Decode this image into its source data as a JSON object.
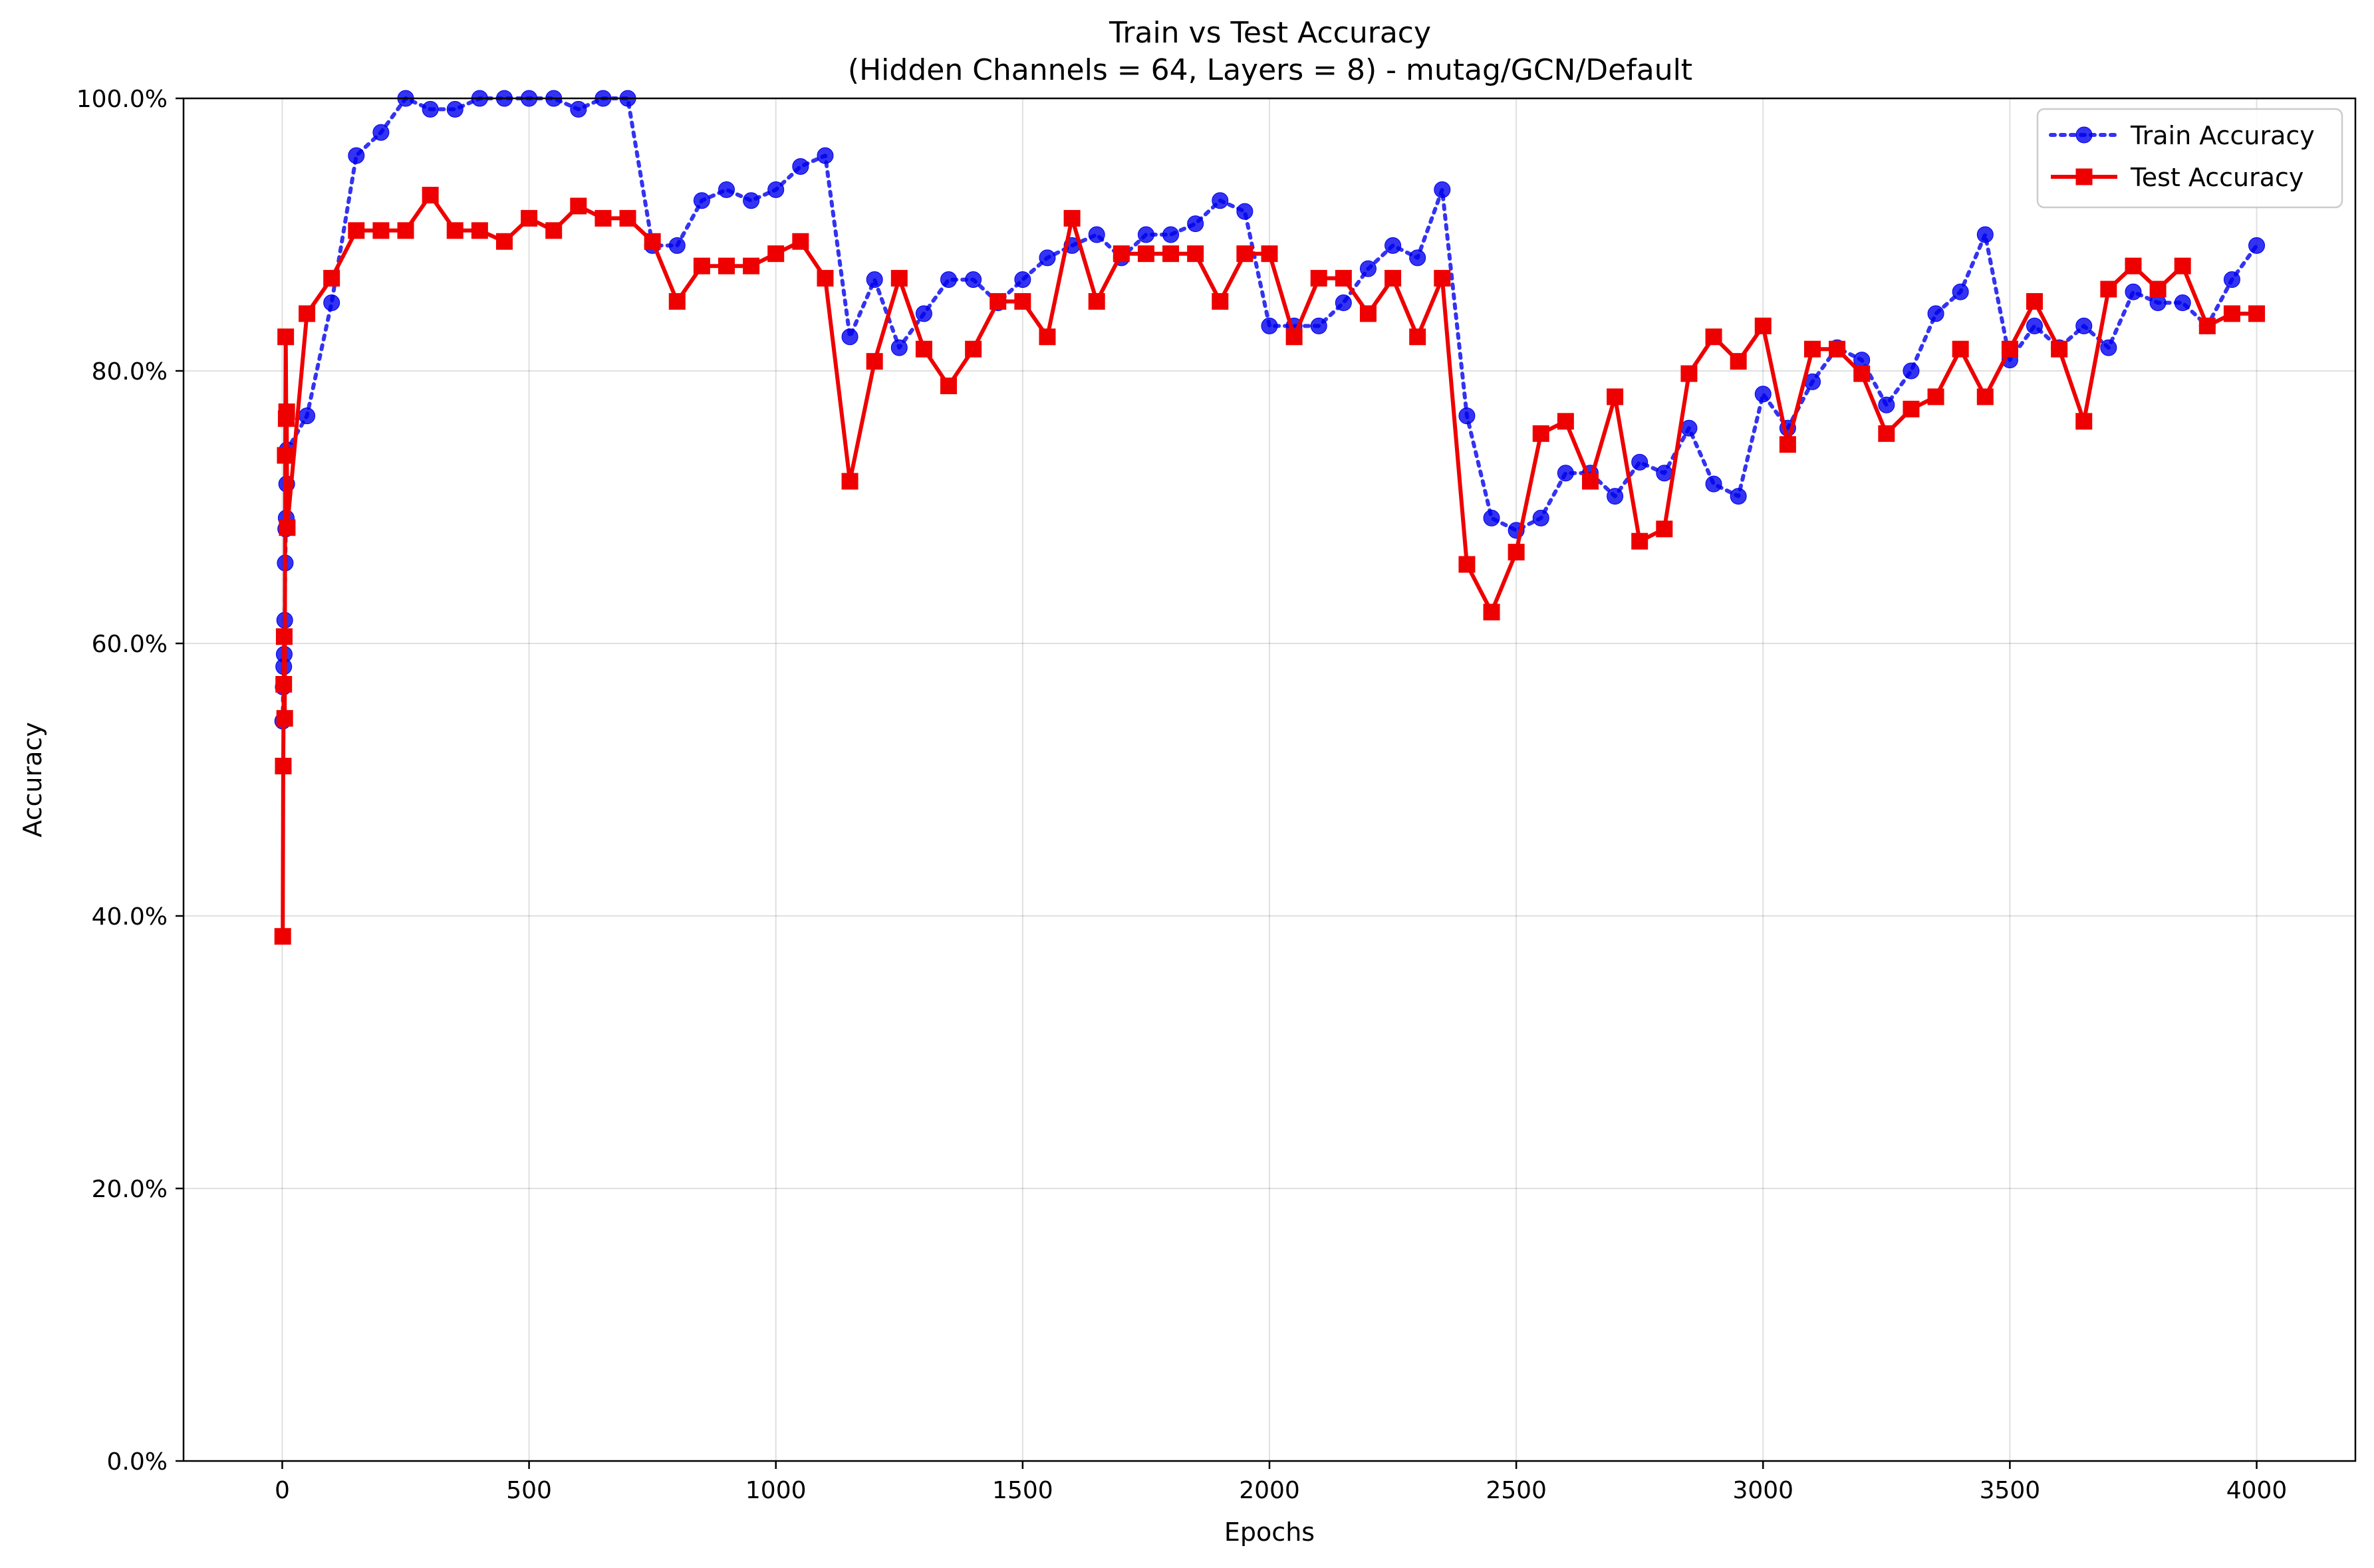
{
  "chart_data": {
    "type": "line",
    "title": "Train vs Test Accuracy",
    "subtitle": "(Hidden Channels = 64, Layers = 8) - mutag/GCN/Default",
    "xlabel": "Epochs",
    "ylabel": "Accuracy",
    "xlim": [
      -200,
      4200
    ],
    "ylim": [
      0,
      100
    ],
    "xticks": [
      0,
      500,
      1000,
      1500,
      2000,
      2500,
      3000,
      3500,
      4000
    ],
    "xtick_labels": [
      "0",
      "500",
      "1000",
      "1500",
      "2000",
      "2500",
      "3000",
      "3500",
      "4000"
    ],
    "yticks": [
      0,
      20,
      40,
      60,
      80,
      100
    ],
    "ytick_labels": [
      "0.0%",
      "20.0%",
      "40.0%",
      "60.0%",
      "80.0%",
      "100.0%"
    ],
    "grid": true,
    "legend_position": "top-right",
    "series": [
      {
        "name": "Train Accuracy",
        "color": "#0000ee",
        "style": "dotted",
        "marker": "circle",
        "x": [
          1,
          2,
          3,
          4,
          5,
          6,
          7,
          8,
          9,
          10,
          50,
          100,
          150,
          200,
          250,
          300,
          350,
          400,
          450,
          500,
          550,
          600,
          650,
          700,
          750,
          800,
          850,
          900,
          950,
          1000,
          1050,
          1100,
          1150,
          1200,
          1250,
          1300,
          1350,
          1400,
          1450,
          1500,
          1550,
          1600,
          1650,
          1700,
          1750,
          1800,
          1850,
          1900,
          1950,
          2000,
          2050,
          2100,
          2150,
          2200,
          2250,
          2300,
          2350,
          2400,
          2450,
          2500,
          2550,
          2600,
          2650,
          2700,
          2750,
          2800,
          2850,
          2900,
          2950,
          3000,
          3050,
          3100,
          3150,
          3200,
          3250,
          3300,
          3350,
          3400,
          3450,
          3500,
          3550,
          3600,
          3650,
          3700,
          3750,
          3800,
          3850,
          3900,
          3950,
          4000
        ],
        "values": [
          54.3,
          56.8,
          58.3,
          59.2,
          61.7,
          65.9,
          68.4,
          69.2,
          71.7,
          74.2,
          76.7,
          85.0,
          95.8,
          97.5,
          100.0,
          99.2,
          99.2,
          100.0,
          100.0,
          100.0,
          100.0,
          99.2,
          100.0,
          100.0,
          89.2,
          89.2,
          92.5,
          93.3,
          92.5,
          93.3,
          95.0,
          95.8,
          82.5,
          86.7,
          81.7,
          84.2,
          86.7,
          86.7,
          85.0,
          86.7,
          88.3,
          89.2,
          90.0,
          88.3,
          90.0,
          90.0,
          90.8,
          92.5,
          91.7,
          83.3,
          83.3,
          83.3,
          85.0,
          87.5,
          89.2,
          88.3,
          93.3,
          76.7,
          69.2,
          68.3,
          69.2,
          72.5,
          72.5,
          70.8,
          73.3,
          72.5,
          75.8,
          71.7,
          70.8,
          78.3,
          75.8,
          79.2,
          81.7,
          80.8,
          77.5,
          80.0,
          84.2,
          85.8,
          90.0,
          80.8,
          83.3,
          81.7,
          83.3,
          81.7,
          85.8,
          85.0,
          85.0,
          83.3,
          86.7,
          89.2
        ]
      },
      {
        "name": "Test Accuracy",
        "color": "#ee0000",
        "style": "solid",
        "marker": "square",
        "x": [
          1,
          2,
          3,
          4,
          5,
          6,
          7,
          8,
          9,
          10,
          50,
          100,
          150,
          200,
          250,
          300,
          350,
          400,
          450,
          500,
          550,
          600,
          650,
          700,
          750,
          800,
          850,
          900,
          950,
          1000,
          1050,
          1100,
          1150,
          1200,
          1250,
          1300,
          1350,
          1400,
          1450,
          1500,
          1550,
          1600,
          1650,
          1700,
          1750,
          1800,
          1850,
          1900,
          1950,
          2000,
          2050,
          2100,
          2150,
          2200,
          2250,
          2300,
          2350,
          2400,
          2450,
          2500,
          2550,
          2600,
          2650,
          2700,
          2750,
          2800,
          2850,
          2900,
          2950,
          3000,
          3050,
          3100,
          3150,
          3200,
          3250,
          3300,
          3350,
          3400,
          3450,
          3500,
          3550,
          3600,
          3650,
          3700,
          3750,
          3800,
          3850,
          3900,
          3950,
          4000
        ],
        "values": [
          38.5,
          51.0,
          57.0,
          60.5,
          54.5,
          73.8,
          82.5,
          76.5,
          77.0,
          68.5,
          84.2,
          86.8,
          90.3,
          90.3,
          90.3,
          92.9,
          90.3,
          90.3,
          89.5,
          91.2,
          90.3,
          92.1,
          91.2,
          91.2,
          89.5,
          85.1,
          87.7,
          87.7,
          87.7,
          88.6,
          89.5,
          86.8,
          71.9,
          80.7,
          86.8,
          81.6,
          78.9,
          81.6,
          85.1,
          85.1,
          82.5,
          91.2,
          85.1,
          88.6,
          88.6,
          88.6,
          88.6,
          85.1,
          88.6,
          88.6,
          82.5,
          86.8,
          86.8,
          84.2,
          86.8,
          82.5,
          86.8,
          65.8,
          62.3,
          66.7,
          75.4,
          76.3,
          71.9,
          78.1,
          67.5,
          68.4,
          79.8,
          82.5,
          80.7,
          83.3,
          74.6,
          81.6,
          81.6,
          79.8,
          75.4,
          77.2,
          78.1,
          81.6,
          78.1,
          81.6,
          85.1,
          81.6,
          76.3,
          86.0,
          87.7,
          86.0,
          87.7,
          83.3,
          84.2,
          84.2
        ]
      }
    ]
  }
}
